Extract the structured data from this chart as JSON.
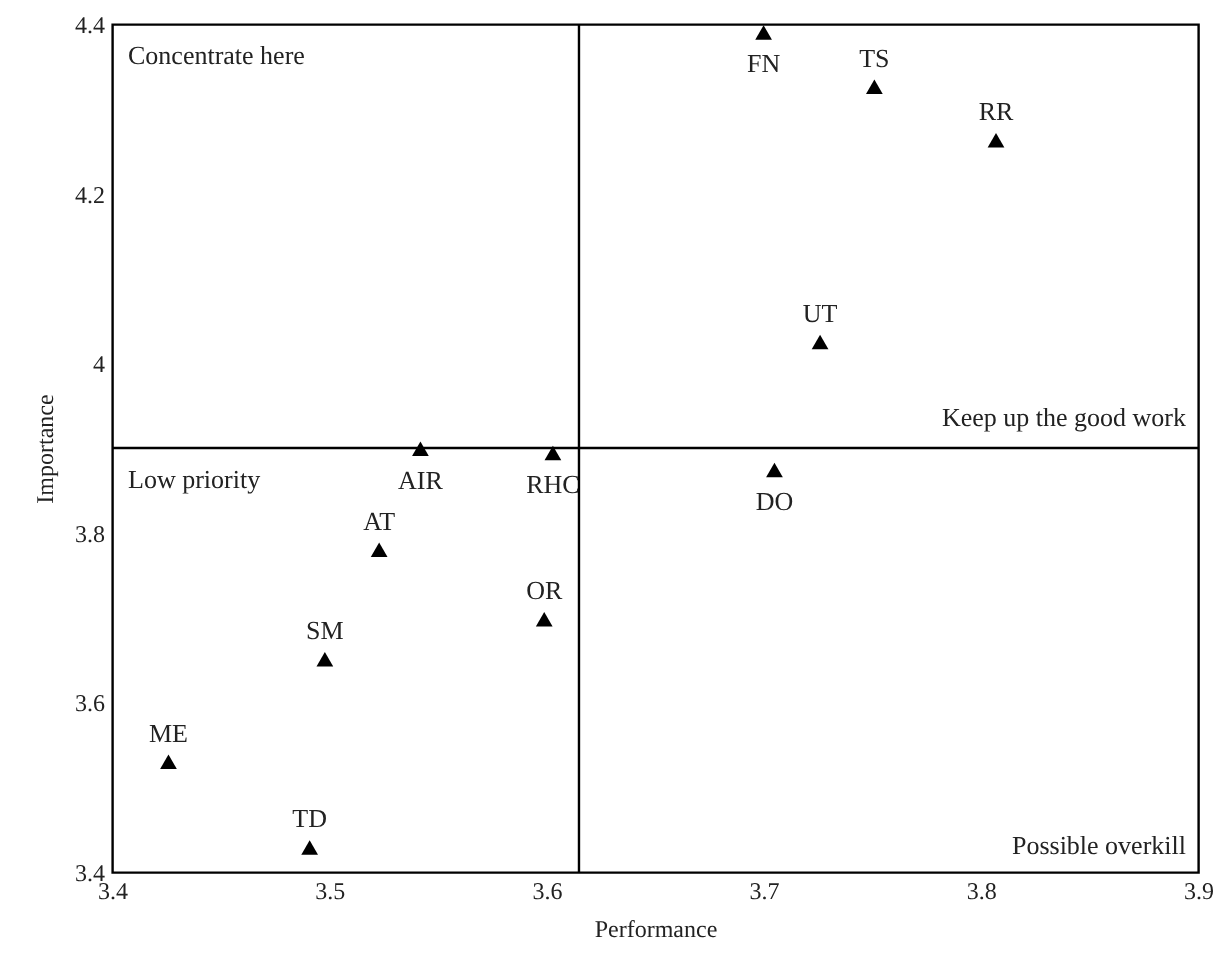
{
  "chart_data": {
    "type": "scatter",
    "xlabel": "Performance",
    "ylabel": "Importance",
    "x": [
      3.7,
      3.751,
      3.807,
      3.726,
      3.542,
      3.603,
      3.705,
      3.523,
      3.599,
      3.498,
      3.426,
      3.491
    ],
    "series": [
      {
        "color": "#000000",
        "values": [
          4.39,
          4.326,
          4.263,
          4.025,
          3.899,
          3.894,
          3.874,
          3.78,
          3.698,
          3.651,
          3.53,
          3.429
        ]
      }
    ],
    "marker": "triangle",
    "xlim": [
      3.4,
      3.9
    ],
    "xticks": [
      3.4,
      3.5,
      3.6,
      3.7,
      3.8,
      3.9
    ],
    "ylim": [
      3.4,
      4.4
    ],
    "yticks": [
      3.4,
      3.6,
      3.8,
      4,
      4.2,
      4.4
    ],
    "ref_lines": [
      {
        "axis": "x",
        "value": 3.615,
        "color": "#000000"
      },
      {
        "axis": "y",
        "value": 3.9,
        "color": "#000000"
      }
    ],
    "annotations": [
      {
        "text": "FN",
        "x": 3.7,
        "y": 4.39
      },
      {
        "text": "TS",
        "x": 3.751,
        "y": 4.326
      },
      {
        "text": "RR",
        "x": 3.807,
        "y": 4.263
      },
      {
        "text": "UT",
        "x": 3.726,
        "y": 4.025
      },
      {
        "text": "AIR",
        "x": 3.542,
        "y": 3.899
      },
      {
        "text": "RHC",
        "x": 3.603,
        "y": 3.894
      },
      {
        "text": "DO",
        "x": 3.705,
        "y": 3.874
      },
      {
        "text": "AT",
        "x": 3.523,
        "y": 3.78
      },
      {
        "text": "OR",
        "x": 3.599,
        "y": 3.698
      },
      {
        "text": "SM",
        "x": 3.498,
        "y": 3.651
      },
      {
        "text": "ME",
        "x": 3.426,
        "y": 3.53
      },
      {
        "text": "TD",
        "x": 3.491,
        "y": 3.429
      },
      "Concentrate here",
      "Keep up the good work",
      "Low priority",
      "Possible overkill"
    ],
    "grid": false
  }
}
